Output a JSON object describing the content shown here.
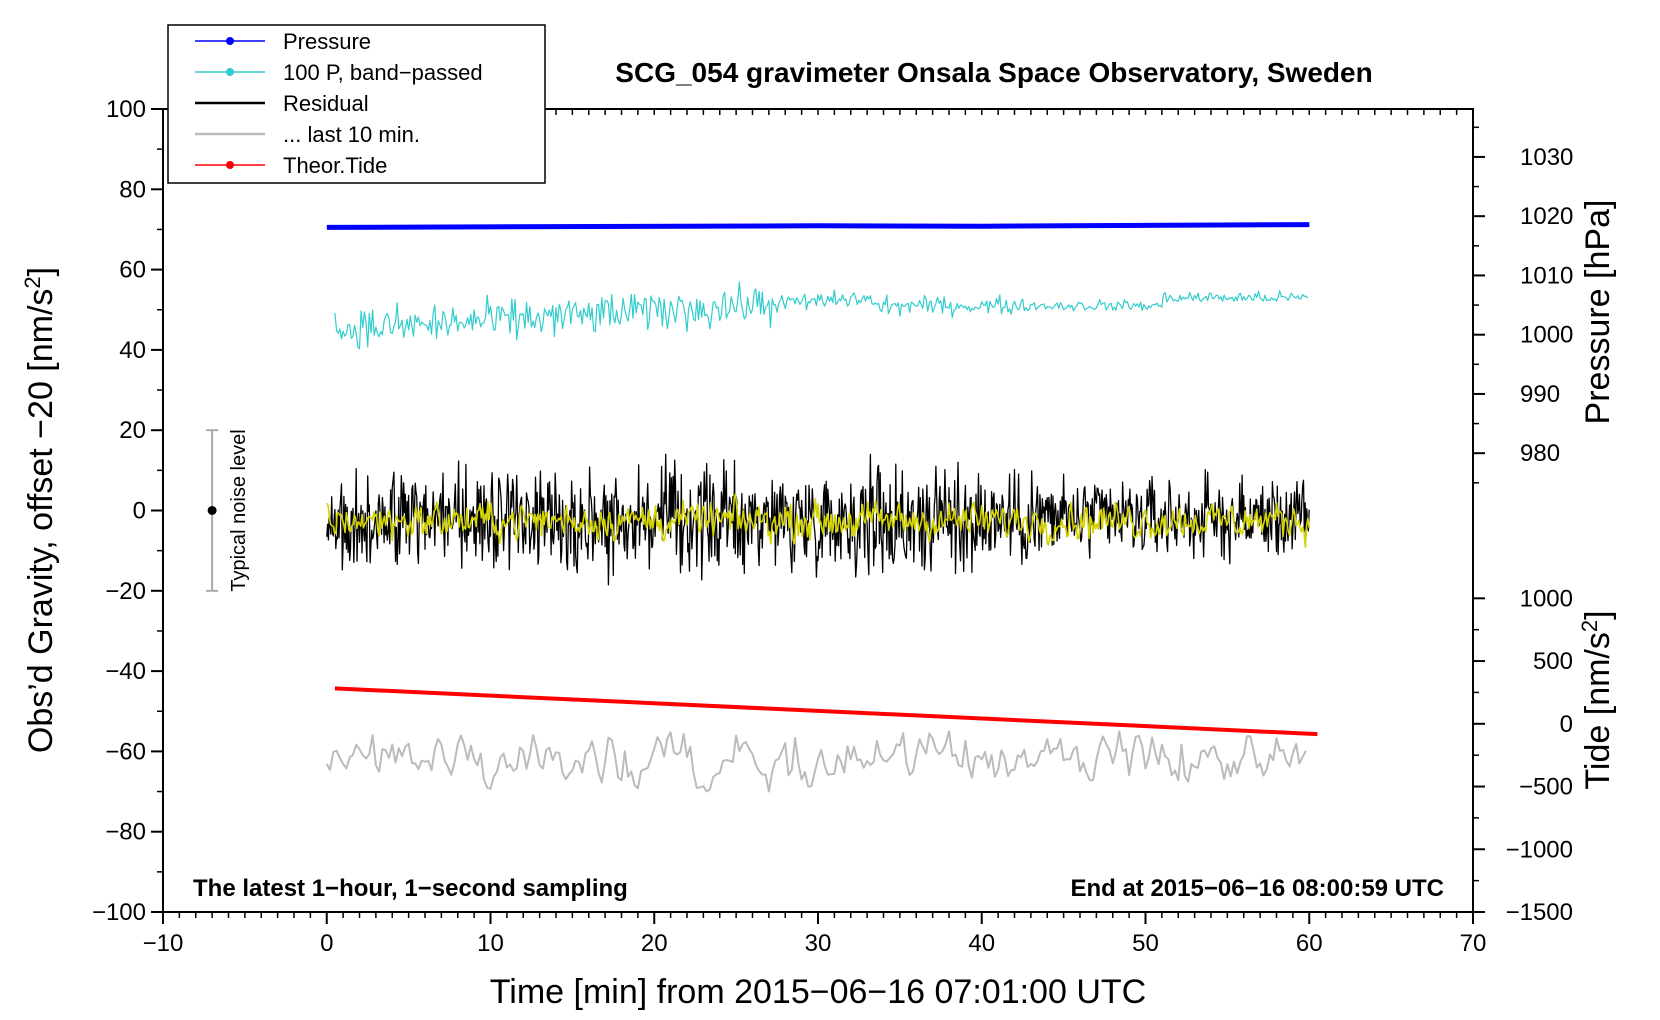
{
  "chart_data": {
    "type": "line",
    "title": "SCG_054 gravimeter Onsala Space Observatory, Sweden",
    "xlabel": "Time [min] from 2015−06−16 07:01:00 UTC",
    "ylabel_left": "Obs’d Gravity, offset −20 [nm/s",
    "ylabel_left_sup": "2",
    "ylabel_left_end": "]",
    "ylabel_pressure": "Pressure [hPa]",
    "ylabel_tide": "Tide [nm/s",
    "ylabel_tide_sup": "2",
    "ylabel_tide_end": "]",
    "xlim": [
      -10,
      70
    ],
    "ylim": [
      -100,
      100
    ],
    "x_ticks": [
      -10,
      0,
      10,
      20,
      30,
      40,
      50,
      60,
      70
    ],
    "x_tick_labels": [
      "−10",
      "0",
      "10",
      "20",
      "30",
      "40",
      "50",
      "60",
      "70"
    ],
    "y_ticks": [
      -100,
      -80,
      -60,
      -40,
      -20,
      0,
      20,
      40,
      60,
      80,
      100
    ],
    "y_tick_labels": [
      "−100",
      "−80",
      "−60",
      "−40",
      "−20",
      "0",
      "20",
      "40",
      "60",
      "80",
      "100"
    ],
    "pressure_axis": {
      "ticks": [
        980,
        990,
        1000,
        1010,
        1020,
        1030
      ],
      "tick_labels": [
        "980",
        "990",
        "1000",
        "1010",
        "1020",
        "1030"
      ],
      "value_at_left_0": 970.33,
      "value_at_left_100": 1038.09
    },
    "tide_axis": {
      "ticks": [
        -1500,
        -1000,
        -500,
        0,
        500,
        1000
      ],
      "tick_labels": [
        "−1500",
        "−1000",
        "−500",
        "0",
        "500",
        "1000"
      ],
      "value_at_left_minus100": -1500,
      "value_at_left_0": 1700
    },
    "legend": [
      {
        "label": "Pressure",
        "color": "#0000ff",
        "marker": true
      },
      {
        "label": "100 P, band−passed",
        "color": "#33cccc",
        "marker": true
      },
      {
        "label": "Residual",
        "color": "#000000",
        "marker": false
      },
      {
        "label": "... last 10 min.",
        "color": "#bbbbbb",
        "marker": false
      },
      {
        "label": "Theor.Tide",
        "color": "#ff0000",
        "marker": true
      }
    ],
    "series": [
      {
        "name": "Pressure",
        "color": "#0000ff",
        "x_range": [
          0,
          60
        ],
        "approx_y": [
          70.5,
          71.2
        ],
        "kind": "flat"
      },
      {
        "name": "100 P, band−passed",
        "color": "#33cccc",
        "x_range": [
          0.5,
          60
        ],
        "approx_y": [
          45,
          53
        ],
        "kind": "noisy-rising"
      },
      {
        "name": "Residual",
        "color": "#000000",
        "x_range": [
          0,
          60
        ],
        "approx_center": -2,
        "noise_amplitude": 6,
        "kind": "noisy"
      },
      {
        "name": "Residual, smoothed",
        "color": "#d4d400",
        "x_range": [
          0,
          60
        ],
        "approx_center": -2.5,
        "noise_amplitude": 2,
        "kind": "noisy"
      },
      {
        "name": "... last 10 min.",
        "color": "#bbbbbb",
        "x_range": [
          0,
          60
        ],
        "approx_center": -62,
        "noise_amplitude": 4,
        "kind": "noisy"
      },
      {
        "name": "Theor.Tide",
        "color": "#ff0000",
        "x_range": [
          0.5,
          60.5
        ],
        "approx_y": [
          -44.3,
          -55.7
        ],
        "kind": "linear"
      }
    ],
    "noise_bar": {
      "x": -7,
      "y_center": 0,
      "y_range": [
        -20,
        20
      ],
      "label": "Typical noise level"
    },
    "annotation_left": "The latest 1−hour, 1−second sampling",
    "annotation_right": "End at 2015−06−16 08:00:59 UTC",
    "grid": false
  }
}
